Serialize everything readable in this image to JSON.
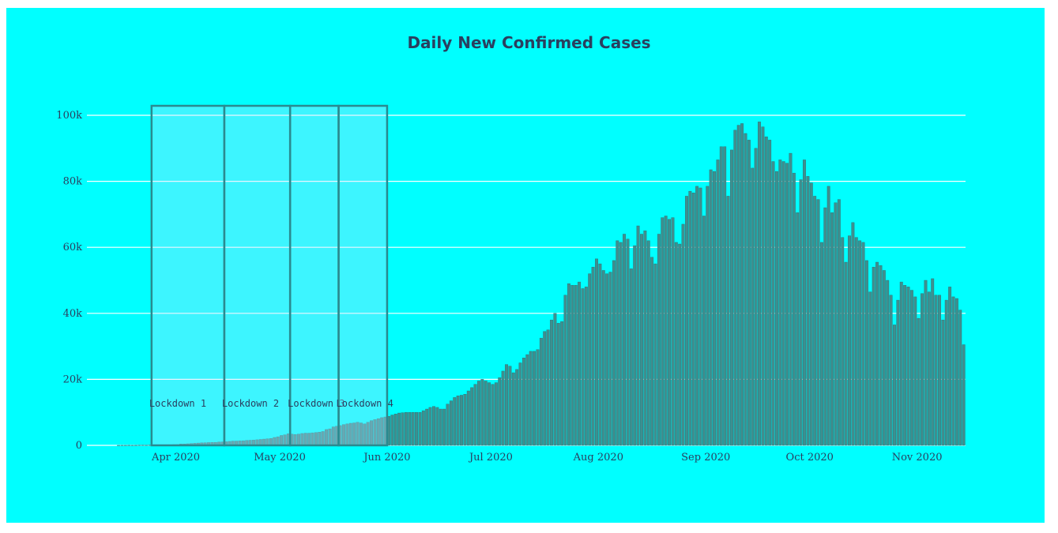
{
  "chart_data": {
    "type": "bar",
    "title": "Daily New Confirmed Cases",
    "xlabel": "",
    "ylabel": "",
    "x_start": "2020-03-15",
    "ylim": [
      0,
      103000
    ],
    "grid": true,
    "y_ticks": [
      0,
      20000,
      40000,
      60000,
      80000,
      100000
    ],
    "y_tick_labels": [
      "0",
      "20k",
      "40k",
      "60k",
      "80k",
      "100k"
    ],
    "x_ticks": [
      {
        "date": "2020-04-01",
        "label": "Apr 2020"
      },
      {
        "date": "2020-05-01",
        "label": "May 2020"
      },
      {
        "date": "2020-06-01",
        "label": "Jun 2020"
      },
      {
        "date": "2020-07-01",
        "label": "Jul 2020"
      },
      {
        "date": "2020-08-01",
        "label": "Aug 2020"
      },
      {
        "date": "2020-09-01",
        "label": "Sep 2020"
      },
      {
        "date": "2020-10-01",
        "label": "Oct 2020"
      },
      {
        "date": "2020-11-01",
        "label": "Nov 2020"
      }
    ],
    "annotations": [
      {
        "label": "Lockdown 1",
        "start": "2020-03-25",
        "end": "2020-04-14"
      },
      {
        "label": "Lockdown 2",
        "start": "2020-04-15",
        "end": "2020-05-03"
      },
      {
        "label": "Lockdown 3",
        "start": "2020-05-04",
        "end": "2020-05-17"
      },
      {
        "label": "Lockdown 4",
        "start": "2020-05-18",
        "end": "2020-05-31"
      }
    ],
    "values": [
      10,
      20,
      20,
      30,
      20,
      30,
      60,
      80,
      70,
      90,
      90,
      100,
      110,
      150,
      160,
      180,
      230,
      240,
      400,
      420,
      480,
      550,
      620,
      700,
      760,
      800,
      850,
      900,
      910,
      1000,
      1050,
      1100,
      1200,
      1300,
      1300,
      1350,
      1400,
      1500,
      1550,
      1600,
      1700,
      1800,
      1900,
      2000,
      2100,
      2400,
      2600,
      3000,
      3200,
      3500,
      3400,
      3300,
      3400,
      3600,
      3700,
      3700,
      3800,
      3900,
      4000,
      4200,
      4800,
      5000,
      5600,
      5800,
      6000,
      6300,
      6500,
      6700,
      6800,
      7000,
      6800,
      6500,
      7000,
      7500,
      7800,
      8100,
      8400,
      8600,
      8800,
      9200,
      9500,
      9800,
      9900,
      10000,
      10000,
      10000,
      10000,
      10000,
      10500,
      11000,
      11500,
      11800,
      11500,
      11000,
      11000,
      12500,
      13500,
      14500,
      15000,
      15200,
      15500,
      16500,
      17500,
      18500,
      19500,
      20000,
      19500,
      19000,
      18500,
      19000,
      20500,
      22500,
      24500,
      24000,
      22000,
      23000,
      25000,
      26500,
      27500,
      28500,
      28500,
      29000,
      32500,
      34500,
      35000,
      38000,
      40000,
      37000,
      37500,
      45500,
      49000,
      48500,
      48500,
      49500,
      47500,
      48000,
      52000,
      54000,
      56500,
      55000,
      53000,
      52000,
      52500,
      56000,
      62000,
      61500,
      64000,
      62500,
      53500,
      60500,
      66500,
      64000,
      65000,
      62000,
      57000,
      55000,
      64000,
      69000,
      69500,
      68500,
      69000,
      61500,
      61000,
      67000,
      75500,
      77000,
      76500,
      78500,
      78000,
      69500,
      78500,
      83500,
      83000,
      86500,
      90500,
      90500,
      75500,
      89500,
      95500,
      97000,
      97500,
      94500,
      92500,
      84000,
      90000,
      98000,
      96500,
      93500,
      92500,
      86000,
      83000,
      86500,
      86000,
      85500,
      88500,
      82500,
      70500,
      80500,
      86500,
      81500,
      79500,
      75500,
      74500,
      61500,
      72000,
      78500,
      70500,
      73500,
      74500,
      63000,
      55500,
      63500,
      67500,
      63000,
      62000,
      61500,
      56000,
      46500,
      54000,
      55500,
      54500,
      53000,
      50000,
      45500,
      36500,
      44000,
      49500,
      48500,
      48000,
      47000,
      45000,
      38500,
      46000,
      50000,
      46500,
      50500,
      45500,
      45500,
      38000,
      44000,
      48000,
      45000,
      44500,
      41000,
      30500
    ]
  }
}
